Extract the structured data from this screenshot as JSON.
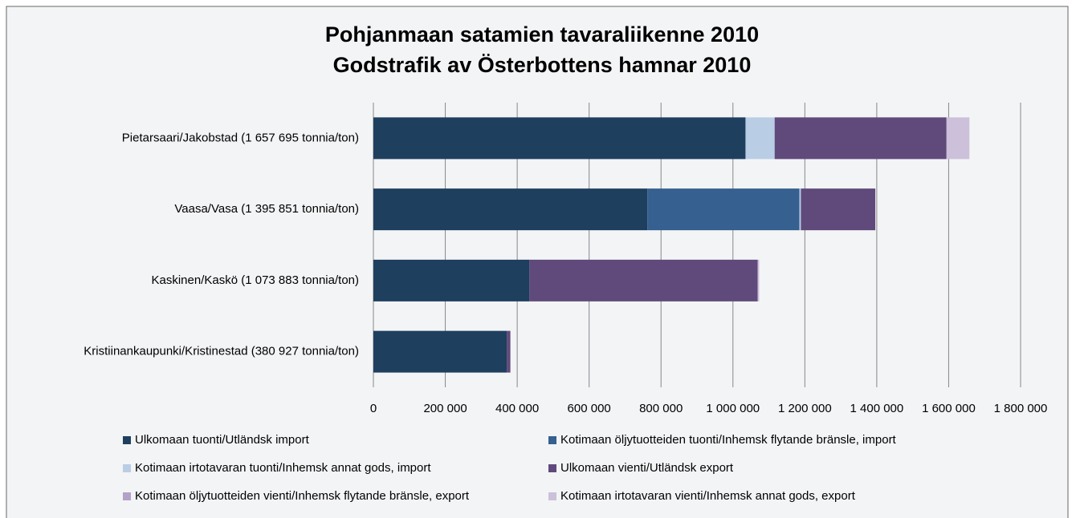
{
  "chart_data": {
    "type": "stacked-barh",
    "title": [
      "Pohjanmaan satamien tavaraliikenne 2010",
      "Godstrafik av Österbottens hamnar 2010"
    ],
    "categories": [
      "Pietarsaari/Jakobstad (1 657 695 tonnia/ton)",
      "Vaasa/Vasa (1 395 851 tonnia/ton)",
      "Kaskinen/Kaskö (1 073 883 tonnia/ton)",
      "Kristiinankaupunki/Kristinestad (380 927 tonnia/ton)"
    ],
    "series": [
      {
        "name": "Ulkomaan tuonti/Utländsk import",
        "color": "#1f3f5f",
        "values": [
          1035000,
          762000,
          434000,
          371000
        ]
      },
      {
        "name": "Kotimaan öljytuotteiden tuonti/Inhemsk flytande bränsle, import",
        "color": "#35608f",
        "values": [
          0,
          423000,
          0,
          0
        ]
      },
      {
        "name": "Kotimaan irtotavaran tuonti/Inhemsk annat gods, import",
        "color": "#b9cde5",
        "values": [
          81000,
          4000,
          0,
          0
        ]
      },
      {
        "name": "Ulkomaan vienti/Utländsk export",
        "color": "#604a7b",
        "values": [
          478000,
          207000,
          635000,
          10000
        ]
      },
      {
        "name": "Kotimaan öljytuotteiden vienti/Inhemsk flytande bränsle, export",
        "color": "#b3a2c7",
        "values": [
          0,
          0,
          0,
          0
        ]
      },
      {
        "name": "Kotimaan irtotavaran vienti/Inhemsk annat gods, export",
        "color": "#ccc0da",
        "values": [
          63695,
          0,
          4000,
          0
        ]
      }
    ],
    "xlim": [
      0,
      1800000
    ],
    "xticks": [
      0,
      {
        "value": 200000,
        "label": "200 000"
      },
      {
        "value": 400000,
        "label": "400 000"
      },
      {
        "value": 600000,
        "label": "600 000"
      },
      {
        "value": 800000,
        "label": "800 000"
      },
      {
        "value": 1000000,
        "label": "1 000 000"
      },
      {
        "value": 1200000,
        "label": "1 200 000"
      },
      {
        "value": 1400000,
        "label": "1 400 000"
      },
      {
        "value": 1600000,
        "label": "1 600 000"
      },
      {
        "value": 1800000,
        "label": "1 800 000"
      }
    ],
    "grid": true
  }
}
